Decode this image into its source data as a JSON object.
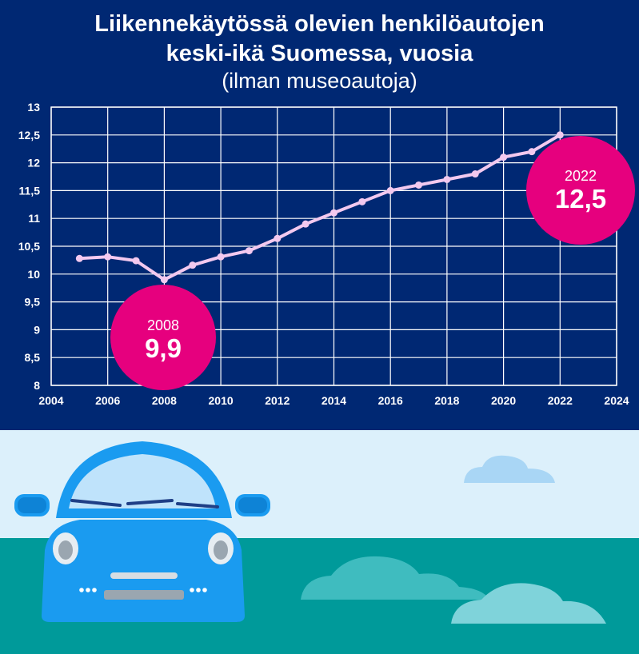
{
  "header": {
    "title_line1": "Liikennekäytössä olevien henkilöautojen",
    "title_line2": "keski-ikä Suomessa, vuosia",
    "subtitle": "(ilman museoautoja)"
  },
  "chart_data": {
    "type": "line",
    "title": "Liikennekäytössä olevien henkilöautojen keski-ikä Suomessa, vuosia",
    "subtitle": "(ilman museoautoja)",
    "xlabel": "",
    "ylabel": "",
    "xlim": [
      2004,
      2024
    ],
    "ylim": [
      8,
      13
    ],
    "x_ticks": [
      "2004",
      "2006",
      "2008",
      "2010",
      "2012",
      "2014",
      "2016",
      "2018",
      "2020",
      "2022",
      "2024"
    ],
    "y_ticks": [
      "8",
      "8,5",
      "9",
      "9,5",
      "10",
      "10,5",
      "11",
      "11,5",
      "12",
      "12,5",
      "13"
    ],
    "grid": true,
    "legend": "none",
    "series": [
      {
        "x": [
          2005,
          2006,
          2007,
          2008,
          2009,
          2010,
          2011,
          2012,
          2013,
          2014,
          2015,
          2016,
          2017,
          2018,
          2019,
          2020,
          2021,
          2022
        ],
        "values": [
          10.28,
          10.31,
          10.24,
          9.9,
          10.16,
          10.31,
          10.42,
          10.64,
          10.9,
          11.1,
          11.3,
          11.5,
          11.6,
          11.7,
          11.8,
          12.1,
          12.2,
          12.5
        ]
      }
    ],
    "annotations": [
      {
        "year_label": "2008",
        "value_label": "9,9"
      },
      {
        "year_label": "2022",
        "value_label": "12,5"
      }
    ]
  },
  "colors": {
    "panel_background": "#002873",
    "grid": "#ffffff",
    "line": "#f3c9ef",
    "callout": "#e6007e",
    "sky": "#dcf0fb",
    "ground": "#009a9a",
    "car_body": "#1a9bf0"
  },
  "illustration": {
    "icons": [
      "car-icon",
      "cloud-icon"
    ]
  }
}
